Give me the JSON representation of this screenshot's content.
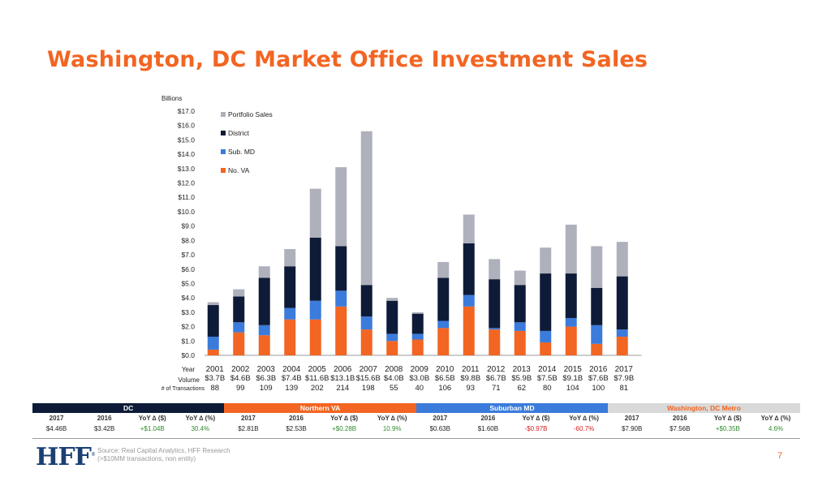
{
  "title": "Washington, DC Market Office Investment Sales",
  "chart_data": {
    "type": "bar",
    "stacked": true,
    "y_axis_title": "Billions",
    "ylim": [
      0,
      17
    ],
    "y_tick_labels": [
      "$0.0",
      "$1.0",
      "$2.0",
      "$3.0",
      "$4.0",
      "$5.0",
      "$6.0",
      "$7.0",
      "$8.0",
      "$9.0",
      "$10.0",
      "$11.0",
      "$12.0",
      "$13.0",
      "$14.0",
      "$15.0",
      "$16.0",
      "$17.0"
    ],
    "categories": [
      "2001",
      "2002",
      "2003",
      "2004",
      "2005",
      "2006",
      "2007",
      "2008",
      "2009",
      "2010",
      "2011",
      "2012",
      "2013",
      "2014",
      "2015",
      "2016",
      "2017"
    ],
    "series": [
      {
        "name": "No. VA",
        "color": "#f26522",
        "values": [
          0.4,
          1.6,
          1.4,
          2.5,
          2.5,
          3.4,
          1.8,
          1.0,
          1.1,
          1.9,
          3.4,
          1.8,
          1.7,
          0.9,
          2.0,
          0.8,
          1.3
        ]
      },
      {
        "name": "Sub. MD",
        "color": "#3b7bdb",
        "values": [
          0.9,
          0.7,
          0.7,
          0.8,
          1.3,
          1.1,
          0.9,
          0.5,
          0.4,
          0.5,
          0.8,
          0.1,
          0.6,
          0.8,
          0.6,
          1.3,
          0.5
        ]
      },
      {
        "name": "District",
        "color": "#0e1b38",
        "values": [
          2.2,
          1.8,
          3.3,
          2.9,
          4.4,
          3.1,
          2.2,
          2.3,
          1.4,
          3.0,
          3.6,
          3.4,
          2.6,
          4.0,
          3.1,
          2.6,
          3.7
        ]
      },
      {
        "name": "Portfolio Sales",
        "color": "#aeb1bb",
        "values": [
          0.2,
          0.5,
          0.8,
          1.2,
          3.4,
          5.5,
          10.7,
          0.2,
          0.1,
          1.1,
          2.0,
          1.4,
          1.0,
          1.8,
          3.4,
          2.9,
          2.4
        ]
      }
    ],
    "legend_order": [
      "Portfolio Sales",
      "District",
      "Sub. MD",
      "No. VA"
    ],
    "legend_position": "top-left",
    "row_labels": {
      "year": "Year",
      "volume": "Volume",
      "transactions": "# of Transactions"
    },
    "volume": [
      "$3.7B",
      "$4.6B",
      "$6.3B",
      "$7.4B",
      "$11.6B",
      "$13.1B",
      "$15.6B",
      "$4.0B",
      "$3.0B",
      "$6.5B",
      "$9.8B",
      "$6.7B",
      "$5.9B",
      "$7.5B",
      "$9.1B",
      "$7.6B",
      "$7.9B"
    ],
    "transactions": [
      "88",
      "99",
      "109",
      "139",
      "202",
      "214",
      "198",
      "55",
      "40",
      "106",
      "93",
      "71",
      "62",
      "80",
      "104",
      "100",
      "81"
    ]
  },
  "summary": {
    "groups": [
      {
        "name": "DC",
        "color": "#0e1b38",
        "text_color": "#ffffff",
        "values": [
          "$4.46B",
          "$3.42B",
          "+$1.04B",
          "30.4%"
        ]
      },
      {
        "name": "Northern VA",
        "color": "#f26522",
        "text_color": "#ffffff",
        "values": [
          "$2.81B",
          "$2.53B",
          "+$0.28B",
          "10.9%"
        ]
      },
      {
        "name": "Suburban MD",
        "color": "#3b7bdb",
        "text_color": "#ffffff",
        "values": [
          "$0.63B",
          "$1.60B",
          "-$0.97B",
          "-60.7%"
        ]
      },
      {
        "name": "Washington, DC Metro",
        "color": "#d9d9d9",
        "text_color": "#f26522",
        "values": [
          "$7.90B",
          "$7.56B",
          "+$0.35B",
          "4.6%"
        ]
      }
    ],
    "subheaders": [
      "2017",
      "2016",
      "YoY ∆ ($)",
      "YoY ∆ (%)"
    ],
    "positive_color": "#2e8b2e",
    "negative_color": "#d62020"
  },
  "footer": {
    "logo": "HFF",
    "logo_mark": "®",
    "source": "Source: Real Capital Analytics, HFF Research (>$10MM transactions, non entity)",
    "page": "7"
  }
}
